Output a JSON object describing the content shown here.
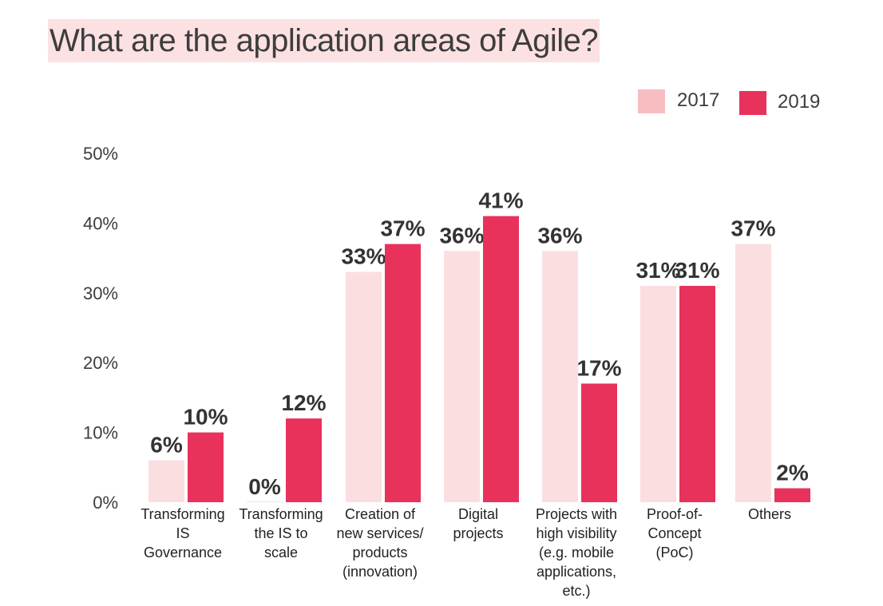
{
  "chart_data": {
    "type": "bar",
    "title": "What are the application areas of Agile?",
    "categories": [
      "Transforming IS Governance",
      "Transforming the IS to scale",
      "Creation of new services/ products (innovation)",
      "Digital projects",
      "Projects with high visibility (e.g. mobile applications, etc.)",
      "Proof-of-Concept (PoC)",
      "Others"
    ],
    "category_lines": [
      [
        "Transforming",
        "IS",
        "Governance"
      ],
      [
        "Transforming",
        "the IS to",
        "scale"
      ],
      [
        "Creation of",
        "new services/",
        "products",
        "(innovation)"
      ],
      [
        "Digital",
        "projects"
      ],
      [
        "Projects with",
        "high visibility",
        "(e.g. mobile",
        "applications,",
        "etc.)"
      ],
      [
        "Proof-of-",
        "Concept",
        "(PoC)"
      ],
      [
        "Others"
      ]
    ],
    "series": [
      {
        "name": "2017",
        "values": [
          6,
          0,
          33,
          36,
          36,
          31,
          37
        ],
        "labels": [
          "6%",
          "0%",
          "33%",
          "36%",
          "36%",
          "31%",
          "37%"
        ],
        "color": "#fbdfe0"
      },
      {
        "name": "2019",
        "values": [
          10,
          12,
          37,
          41,
          17,
          31,
          2
        ],
        "labels": [
          "10%",
          "12%",
          "37%",
          "41%",
          "17%",
          "31%",
          "2%"
        ],
        "color": "#e8325b"
      }
    ],
    "ylim": [
      0,
      50
    ],
    "yticks": [
      0,
      10,
      20,
      30,
      40,
      50
    ],
    "ytick_labels": [
      "0%",
      "10%",
      "20%",
      "30%",
      "40%",
      "50%"
    ],
    "xlabel": "",
    "ylabel": "",
    "grid": false,
    "legend": {
      "placement": "top-right",
      "entries": [
        {
          "label": "2017",
          "color": "#f8bdc0"
        },
        {
          "label": "2019",
          "color": "#e8325b"
        }
      ]
    }
  }
}
